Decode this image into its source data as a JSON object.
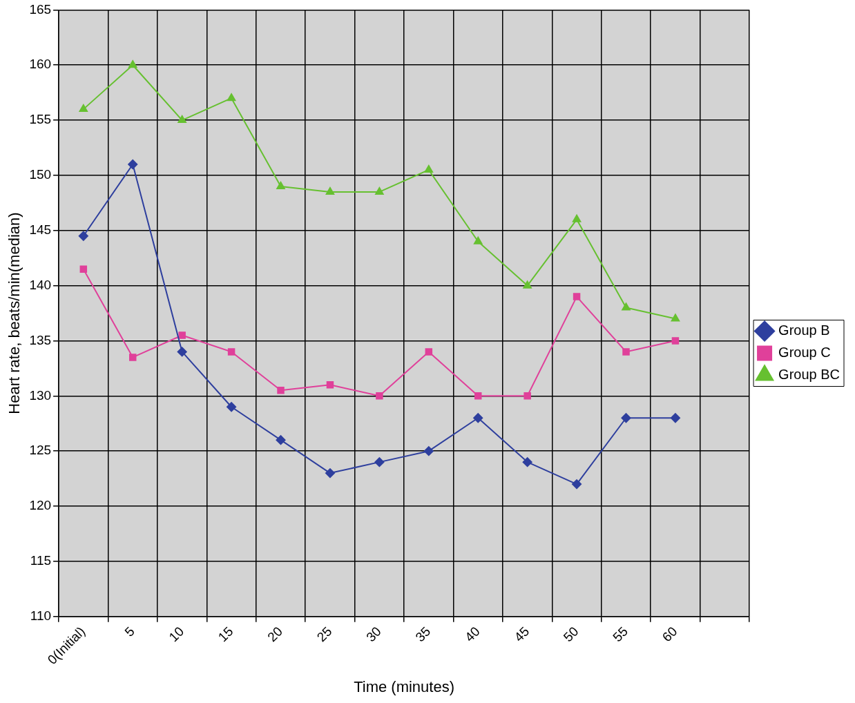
{
  "chart_data": {
    "type": "line",
    "xlabel": "Time (minutes)",
    "ylabel": "Heart rate, beats/min(median)",
    "categories": [
      "0(Initial)",
      "5",
      "10",
      "15",
      "20",
      "25",
      "30",
      "35",
      "40",
      "45",
      "50",
      "55",
      "60",
      null
    ],
    "series": [
      {
        "name": "Group B",
        "color": "#2e3f9e",
        "marker": "diamond",
        "values": [
          144.5,
          151,
          134,
          129,
          126,
          123,
          124,
          125,
          128,
          124,
          122,
          128,
          128,
          null
        ]
      },
      {
        "name": "Group C",
        "color": "#e0409a",
        "marker": "square",
        "values": [
          141.5,
          133.5,
          135.5,
          134,
          130.5,
          131,
          130,
          134,
          130,
          130,
          139,
          134,
          135,
          null
        ]
      },
      {
        "name": "Group BC",
        "color": "#66c030",
        "marker": "triangle",
        "values": [
          156,
          160,
          155,
          157,
          149,
          148.5,
          148.5,
          150.5,
          144,
          140,
          146,
          138,
          137,
          null
        ]
      }
    ],
    "ylim": [
      110,
      165
    ],
    "yticks": [
      110,
      115,
      120,
      125,
      130,
      135,
      140,
      145,
      150,
      155,
      160,
      165
    ],
    "grid": true,
    "legend": "right",
    "line_style": "solid"
  }
}
